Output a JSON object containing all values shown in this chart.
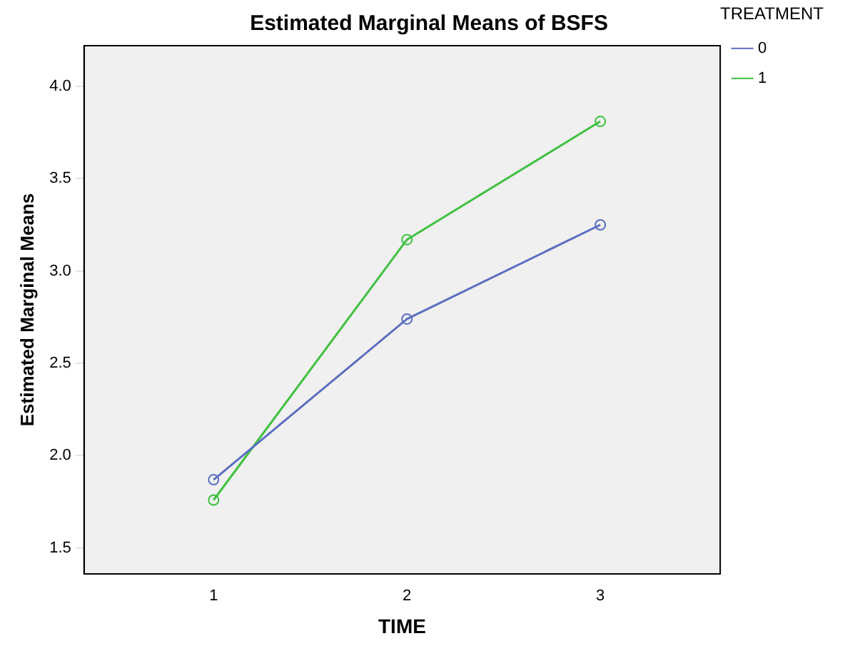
{
  "chart_data": {
    "type": "line",
    "title": "Estimated Marginal Means of BSFS",
    "xlabel": "TIME",
    "ylabel": "Estimated Marginal Means",
    "legend_title": "TREATMENT",
    "x": [
      1,
      2,
      3
    ],
    "xlim": [
      0.33,
      3.62
    ],
    "xticks": [
      1,
      2,
      3
    ],
    "ylim": [
      1.36,
      4.22
    ],
    "yticks": [
      1.5,
      {
        "value": 2,
        "label": "2.0"
      },
      2.5,
      {
        "value": 3,
        "label": "3.0"
      },
      3.5,
      {
        "value": 4,
        "label": "4.0"
      }
    ],
    "series": [
      {
        "name": "0",
        "color": "#5b6ec0",
        "values": [
          1.87,
          2.74,
          3.25
        ]
      },
      {
        "name": "1",
        "color": "#40c040",
        "values": [
          1.76,
          3.17,
          3.81
        ]
      }
    ],
    "marker": "circle",
    "line_style": "solid",
    "grid": false,
    "legend": "right"
  }
}
